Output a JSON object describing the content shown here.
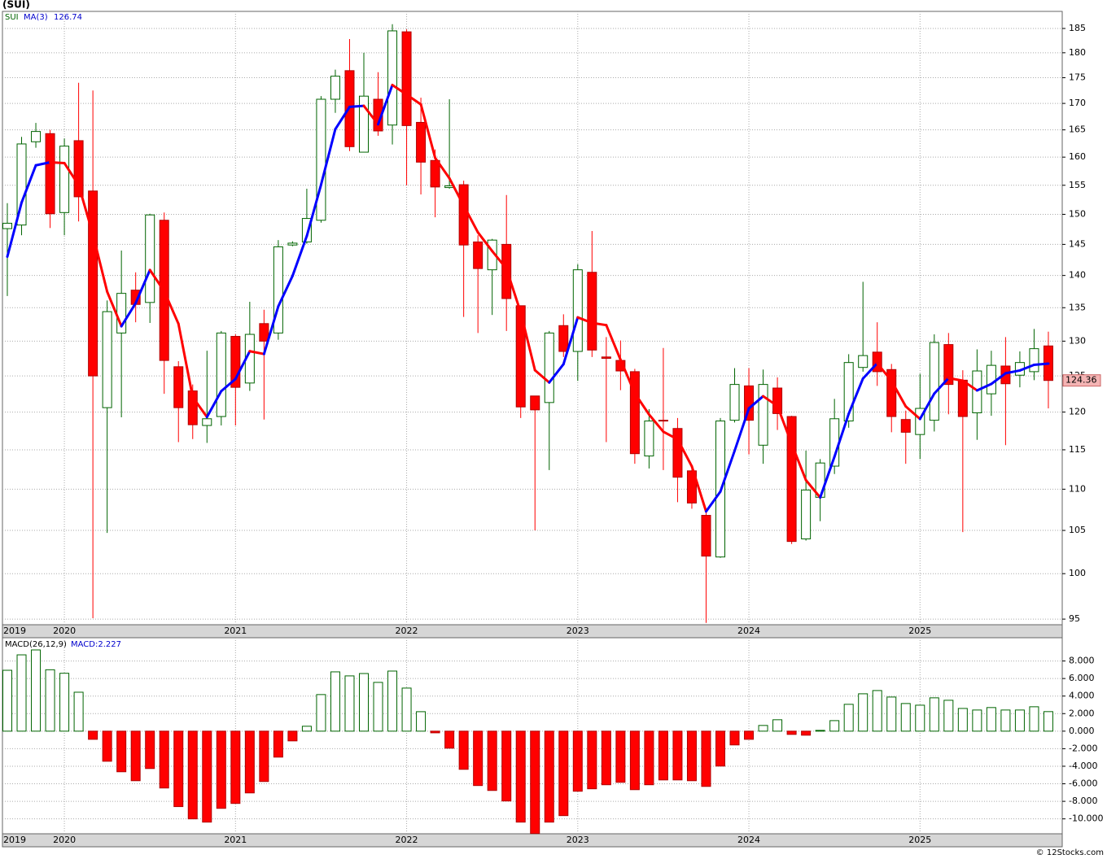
{
  "chart_data": [
    {
      "type": "candlestick",
      "title": "(SUI)",
      "name": "SUI",
      "categories": [
        "2019",
        null,
        null,
        null,
        "2020",
        null,
        null,
        null,
        null,
        null,
        null,
        null,
        null,
        null,
        null,
        null,
        "2021",
        null,
        null,
        null,
        null,
        null,
        null,
        null,
        null,
        null,
        null,
        null,
        "2022",
        null,
        null,
        null,
        null,
        null,
        null,
        null,
        null,
        null,
        null,
        null,
        "2023",
        null,
        null,
        null,
        null,
        null,
        null,
        null,
        null,
        null,
        null,
        null,
        "2024",
        null,
        null,
        null,
        null,
        null,
        null,
        null,
        null,
        null,
        null,
        null,
        "2025",
        null,
        null,
        null,
        null,
        null,
        null,
        null,
        null,
        null
      ],
      "open": [
        147.6,
        148.2,
        162.8,
        164.3,
        150.3,
        163,
        154,
        120.6,
        131.2,
        137.7,
        135.8,
        149,
        126.3,
        122.9,
        118.2,
        119.4,
        130.7,
        124,
        132.6,
        131.2,
        144.9,
        145.4,
        149,
        170.8,
        176.4,
        160.9,
        170.8,
        165.9,
        184.3,
        166.4,
        159.4,
        154.6,
        155.1,
        145.4,
        140.9,
        145,
        135.3,
        122.2,
        121.3,
        132.3,
        128.5,
        140.5,
        127.7,
        127.2,
        125.6,
        114.2,
        118.9,
        117.8,
        112.3,
        106.8,
        101.9,
        118.9,
        123.6,
        115.6,
        123.3,
        119.4,
        104,
        109,
        112.9,
        118.8,
        126.2,
        128.4,
        125.9,
        119,
        117,
        118.9,
        129.5,
        124.4,
        119.9,
        122.5,
        126.4,
        125.1,
        125.6,
        129.3
      ],
      "high": [
        151.9,
        163.7,
        166.3,
        165,
        163.4,
        174,
        172.5,
        136.1,
        144,
        140.5,
        150.1,
        150.3,
        127.1,
        123.8,
        128.6,
        131.5,
        131,
        135.9,
        134.7,
        145.7,
        145.5,
        154.4,
        171.4,
        176.6,
        182.8,
        180,
        176.1,
        185.9,
        184.8,
        171.1,
        161.4,
        170.8,
        155.8,
        146.5,
        145.9,
        153.3,
        135.3,
        122.2,
        131.5,
        134,
        141.8,
        147.2,
        130.6,
        130.1,
        126,
        120.4,
        129,
        119.2,
        112.8,
        107.6,
        119.2,
        126.1,
        126.1,
        125.9,
        124.8,
        119.5,
        114.9,
        113.8,
        121.8,
        128.1,
        139,
        132.8,
        126.7,
        120.2,
        125.3,
        131,
        131.2,
        125.8,
        128.8,
        128.6,
        130.6,
        128.5,
        131.8,
        131.4
      ],
      "low": [
        136.8,
        146.5,
        161.7,
        147.7,
        146.5,
        148.8,
        95.1,
        104.7,
        119.3,
        132.8,
        132.7,
        122.5,
        116,
        116.4,
        115.9,
        118.2,
        118.2,
        122.9,
        119,
        130.2,
        144.7,
        145.1,
        148.6,
        168.2,
        161.1,
        160.9,
        163.9,
        162.3,
        155,
        153.4,
        149.5,
        154.4,
        133.6,
        131.2,
        133.9,
        131.5,
        119.2,
        105,
        112.4,
        127.7,
        124.3,
        127.7,
        116,
        123,
        113.2,
        112.6,
        112.4,
        108.4,
        107.6,
        94.6,
        101.8,
        118.6,
        114.4,
        113.2,
        117.6,
        103.4,
        103.8,
        106.1,
        111.9,
        117.9,
        125.6,
        123.6,
        117.3,
        113.2,
        113.8,
        117.4,
        119.7,
        104.8,
        116.3,
        119.5,
        115.6,
        123.4,
        124.4,
        120.5
      ],
      "close": [
        148.5,
        162.4,
        164.7,
        150.1,
        162,
        153,
        125,
        134.4,
        137.2,
        135.5,
        149.9,
        127.2,
        120.6,
        118.3,
        119.1,
        131.2,
        123.4,
        131,
        130,
        144.6,
        145.2,
        149.3,
        170.8,
        175.3,
        161.9,
        171.4,
        164.8,
        184.5,
        165.8,
        159.1,
        154.7,
        154.9,
        144.9,
        141.1,
        145.7,
        136.4,
        120.7,
        120.3,
        131.2,
        128.5,
        140.9,
        128.7,
        127.5,
        125.7,
        114.5,
        118.8,
        118.8,
        111.5,
        108.3,
        102,
        118.8,
        123.8,
        118.9,
        123.8,
        119.8,
        103.7,
        109.9,
        113.3,
        119.1,
        126.9,
        127.9,
        125.6,
        119.4,
        117.3,
        120.5,
        129.8,
        123.8,
        119.4,
        125.7,
        126.5,
        123.9,
        126.9,
        128.9,
        124.36
      ],
      "up_color": "#006400",
      "down_color": "#ff0000",
      "series": [
        {
          "name": "MA(3)",
          "color": "#0000ff",
          "down_color": "#ff0000",
          "values": [
            143,
            152,
            158.53,
            159.07,
            158.93,
            155.03,
            146.67,
            137.47,
            132.2,
            135.7,
            140.87,
            137.53,
            132.57,
            122.03,
            119.33,
            122.87,
            124.57,
            128.53,
            128.13,
            135.2,
            139.93,
            146.37,
            155.1,
            165.13,
            169.33,
            169.53,
            166.03,
            173.57,
            171.7,
            169.8,
            159.87,
            156.23,
            151.5,
            146.97,
            143.9,
            141.07,
            134.27,
            125.8,
            124.07,
            126.67,
            133.53,
            132.7,
            132.37,
            127.3,
            122.57,
            119.67,
            117.37,
            116.37,
            112.87,
            107.27,
            109.7,
            114.87,
            120.5,
            122.17,
            120.83,
            115.77,
            111.13,
            108.97,
            114.1,
            119.77,
            124.63,
            126.8,
            124.3,
            120.77,
            119.07,
            122.53,
            124.7,
            124.33,
            122.97,
            123.87,
            125.37,
            125.77,
            126.57,
            126.74
          ]
        }
      ],
      "ylim": [
        94.4,
        188.6
      ],
      "log": true,
      "yticks": [
        95,
        100,
        105,
        110,
        115,
        120,
        125,
        130,
        135,
        140,
        145,
        150,
        155,
        160,
        165,
        170,
        175,
        180,
        185
      ],
      "grid": true
    },
    {
      "type": "bar",
      "title": "MACD(26,12,9)",
      "legend_value_label": "MACD:2.227",
      "values": [
        6.94,
        8.7,
        9.26,
        7.0,
        6.6,
        4.44,
        -0.93,
        -3.43,
        -4.63,
        -5.65,
        -4.26,
        -6.48,
        -8.6,
        -10.0,
        -10.37,
        -8.8,
        -8.24,
        -7.04,
        -5.74,
        -2.96,
        -1.11,
        0.56,
        4.17,
        6.76,
        6.3,
        6.57,
        5.56,
        6.85,
        4.91,
        2.22,
        -0.19,
        -1.94,
        -4.35,
        -6.2,
        -6.76,
        -7.96,
        -10.37,
        -11.67,
        -10.37,
        -9.63,
        -6.85,
        -6.57,
        -6.11,
        -5.83,
        -6.67,
        -6.11,
        -5.56,
        -5.56,
        -5.65,
        -6.3,
        -3.98,
        -1.57,
        -0.93,
        0.65,
        1.3,
        -0.37,
        -0.46,
        0.09,
        1.2,
        3.06,
        4.26,
        4.63,
        3.89,
        3.15,
        2.96,
        3.8,
        3.52,
        2.59,
        2.41,
        2.69,
        2.41,
        2.41,
        2.78,
        2.227
      ],
      "up_color": "#006400",
      "down_color": "#ff0000",
      "ylim": [
        -11.7,
        10.65
      ],
      "yticks": [
        {
          "value": 8,
          "label": "8.000"
        },
        {
          "value": 6,
          "label": "6.000"
        },
        {
          "value": 4,
          "label": "4.000"
        },
        {
          "value": 2,
          "label": "2.000"
        },
        {
          "value": 0,
          "label": "0.000"
        },
        {
          "value": -2,
          "label": "-2.000"
        },
        {
          "value": -4,
          "label": "-4.000"
        },
        {
          "value": -6,
          "label": "-6.000"
        },
        {
          "value": -8,
          "label": "-8.000"
        },
        {
          "value": -10,
          "label": "-10.000"
        }
      ],
      "grid": true
    }
  ],
  "footer": "© 12Stocks.com"
}
